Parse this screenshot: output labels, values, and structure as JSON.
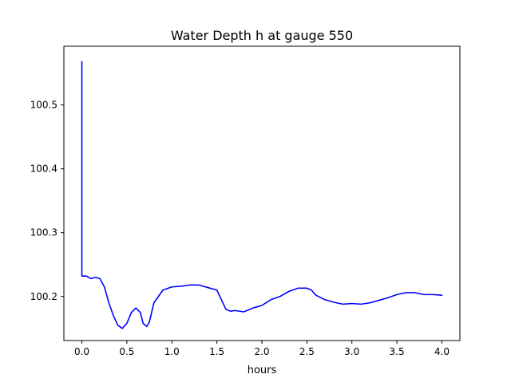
{
  "chart_data": {
    "type": "line",
    "title": "Water Depth h at gauge 550",
    "xlabel": "hours",
    "ylabel": "",
    "xlim": [
      -0.2,
      4.2
    ],
    "ylim": [
      100.131,
      100.592
    ],
    "xticks": [
      0.0,
      0.5,
      1.0,
      1.5,
      2.0,
      2.5,
      3.0,
      3.5,
      4.0
    ],
    "xtick_labels": [
      "0.0",
      "0.5",
      "1.0",
      "1.5",
      "2.0",
      "2.5",
      "3.0",
      "3.5",
      "4.0"
    ],
    "yticks": [
      100.2,
      100.3,
      100.4,
      100.5
    ],
    "ytick_labels": [
      "100.2",
      "100.3",
      "100.4",
      "100.5"
    ],
    "grid": false,
    "series": [
      {
        "color": "#0000ff",
        "x": [
          0.0,
          0.0,
          0.0,
          0.05,
          0.1,
          0.15,
          0.2,
          0.25,
          0.3,
          0.35,
          0.4,
          0.45,
          0.5,
          0.55,
          0.6,
          0.65,
          0.68,
          0.72,
          0.75,
          0.8,
          0.85,
          0.9,
          1.0,
          1.1,
          1.2,
          1.3,
          1.35,
          1.4,
          1.5,
          1.6,
          1.65,
          1.7,
          1.8,
          1.9,
          2.0,
          2.1,
          2.2,
          2.3,
          2.4,
          2.5,
          2.55,
          2.6,
          2.7,
          2.8,
          2.9,
          3.0,
          3.1,
          3.2,
          3.3,
          3.4,
          3.5,
          3.6,
          3.7,
          3.8,
          3.9,
          4.0
        ],
        "y": [
          100.232,
          100.568,
          100.232,
          100.232,
          100.228,
          100.23,
          100.228,
          100.215,
          100.19,
          100.17,
          100.155,
          100.15,
          100.158,
          100.175,
          100.182,
          100.175,
          100.158,
          100.153,
          100.16,
          100.19,
          100.2,
          100.21,
          100.215,
          100.216,
          100.218,
          100.218,
          100.216,
          100.214,
          100.21,
          100.18,
          100.177,
          100.178,
          100.176,
          100.182,
          100.186,
          100.195,
          100.2,
          100.208,
          100.213,
          100.213,
          100.21,
          100.202,
          100.195,
          100.191,
          100.188,
          100.189,
          100.188,
          100.19,
          100.194,
          100.198,
          100.203,
          100.206,
          100.206,
          100.203,
          100.203,
          100.202
        ]
      }
    ]
  }
}
